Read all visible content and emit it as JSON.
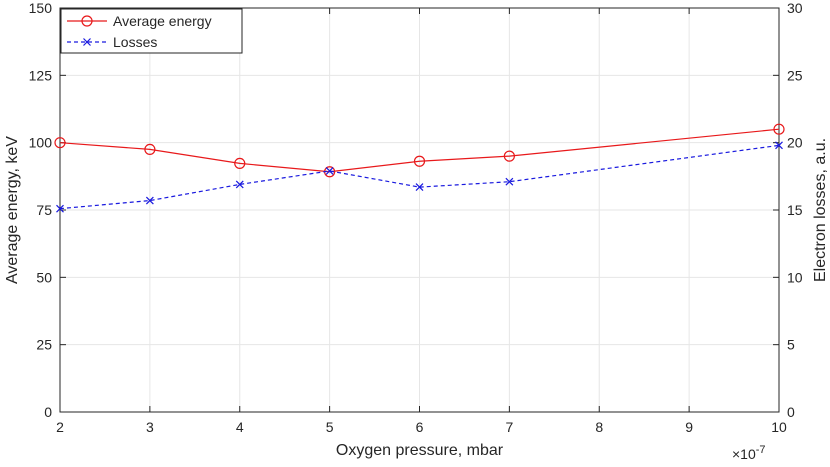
{
  "chart_data": {
    "type": "line",
    "title": "",
    "xlabel": "Oxygen pressure, mbar",
    "ylabel_left": "Average energy, keV",
    "ylabel_right": "Electron losses, a.u.",
    "x_multiplier_label": "×10",
    "x_multiplier_exponent": "-7",
    "xlim": [
      2,
      10
    ],
    "ylim_left": [
      0,
      150
    ],
    "ylim_right": [
      0,
      30
    ],
    "x_ticks": [
      2,
      3,
      4,
      5,
      6,
      7,
      8,
      9,
      10
    ],
    "y_ticks_left": [
      0,
      25,
      50,
      75,
      100,
      125,
      150
    ],
    "y_ticks_right": [
      0,
      5,
      10,
      15,
      20,
      25,
      30
    ],
    "grid": true,
    "legend_position": "top-left",
    "series": [
      {
        "name": "Average energy",
        "axis": "left",
        "color": "#e8191b",
        "line_style": "solid",
        "marker": "circle",
        "x": [
          2,
          3,
          4,
          5,
          6,
          7,
          10
        ],
        "y": [
          100,
          97.5,
          92.3,
          89.2,
          93.1,
          95,
          105
        ]
      },
      {
        "name": "Losses",
        "axis": "right",
        "color": "#1a1adf",
        "line_style": "dashed",
        "marker": "x",
        "x": [
          2,
          3,
          4,
          5,
          6,
          7,
          10
        ],
        "y": [
          15.1,
          15.7,
          16.9,
          17.9,
          16.7,
          17.1,
          19.8
        ]
      }
    ]
  }
}
